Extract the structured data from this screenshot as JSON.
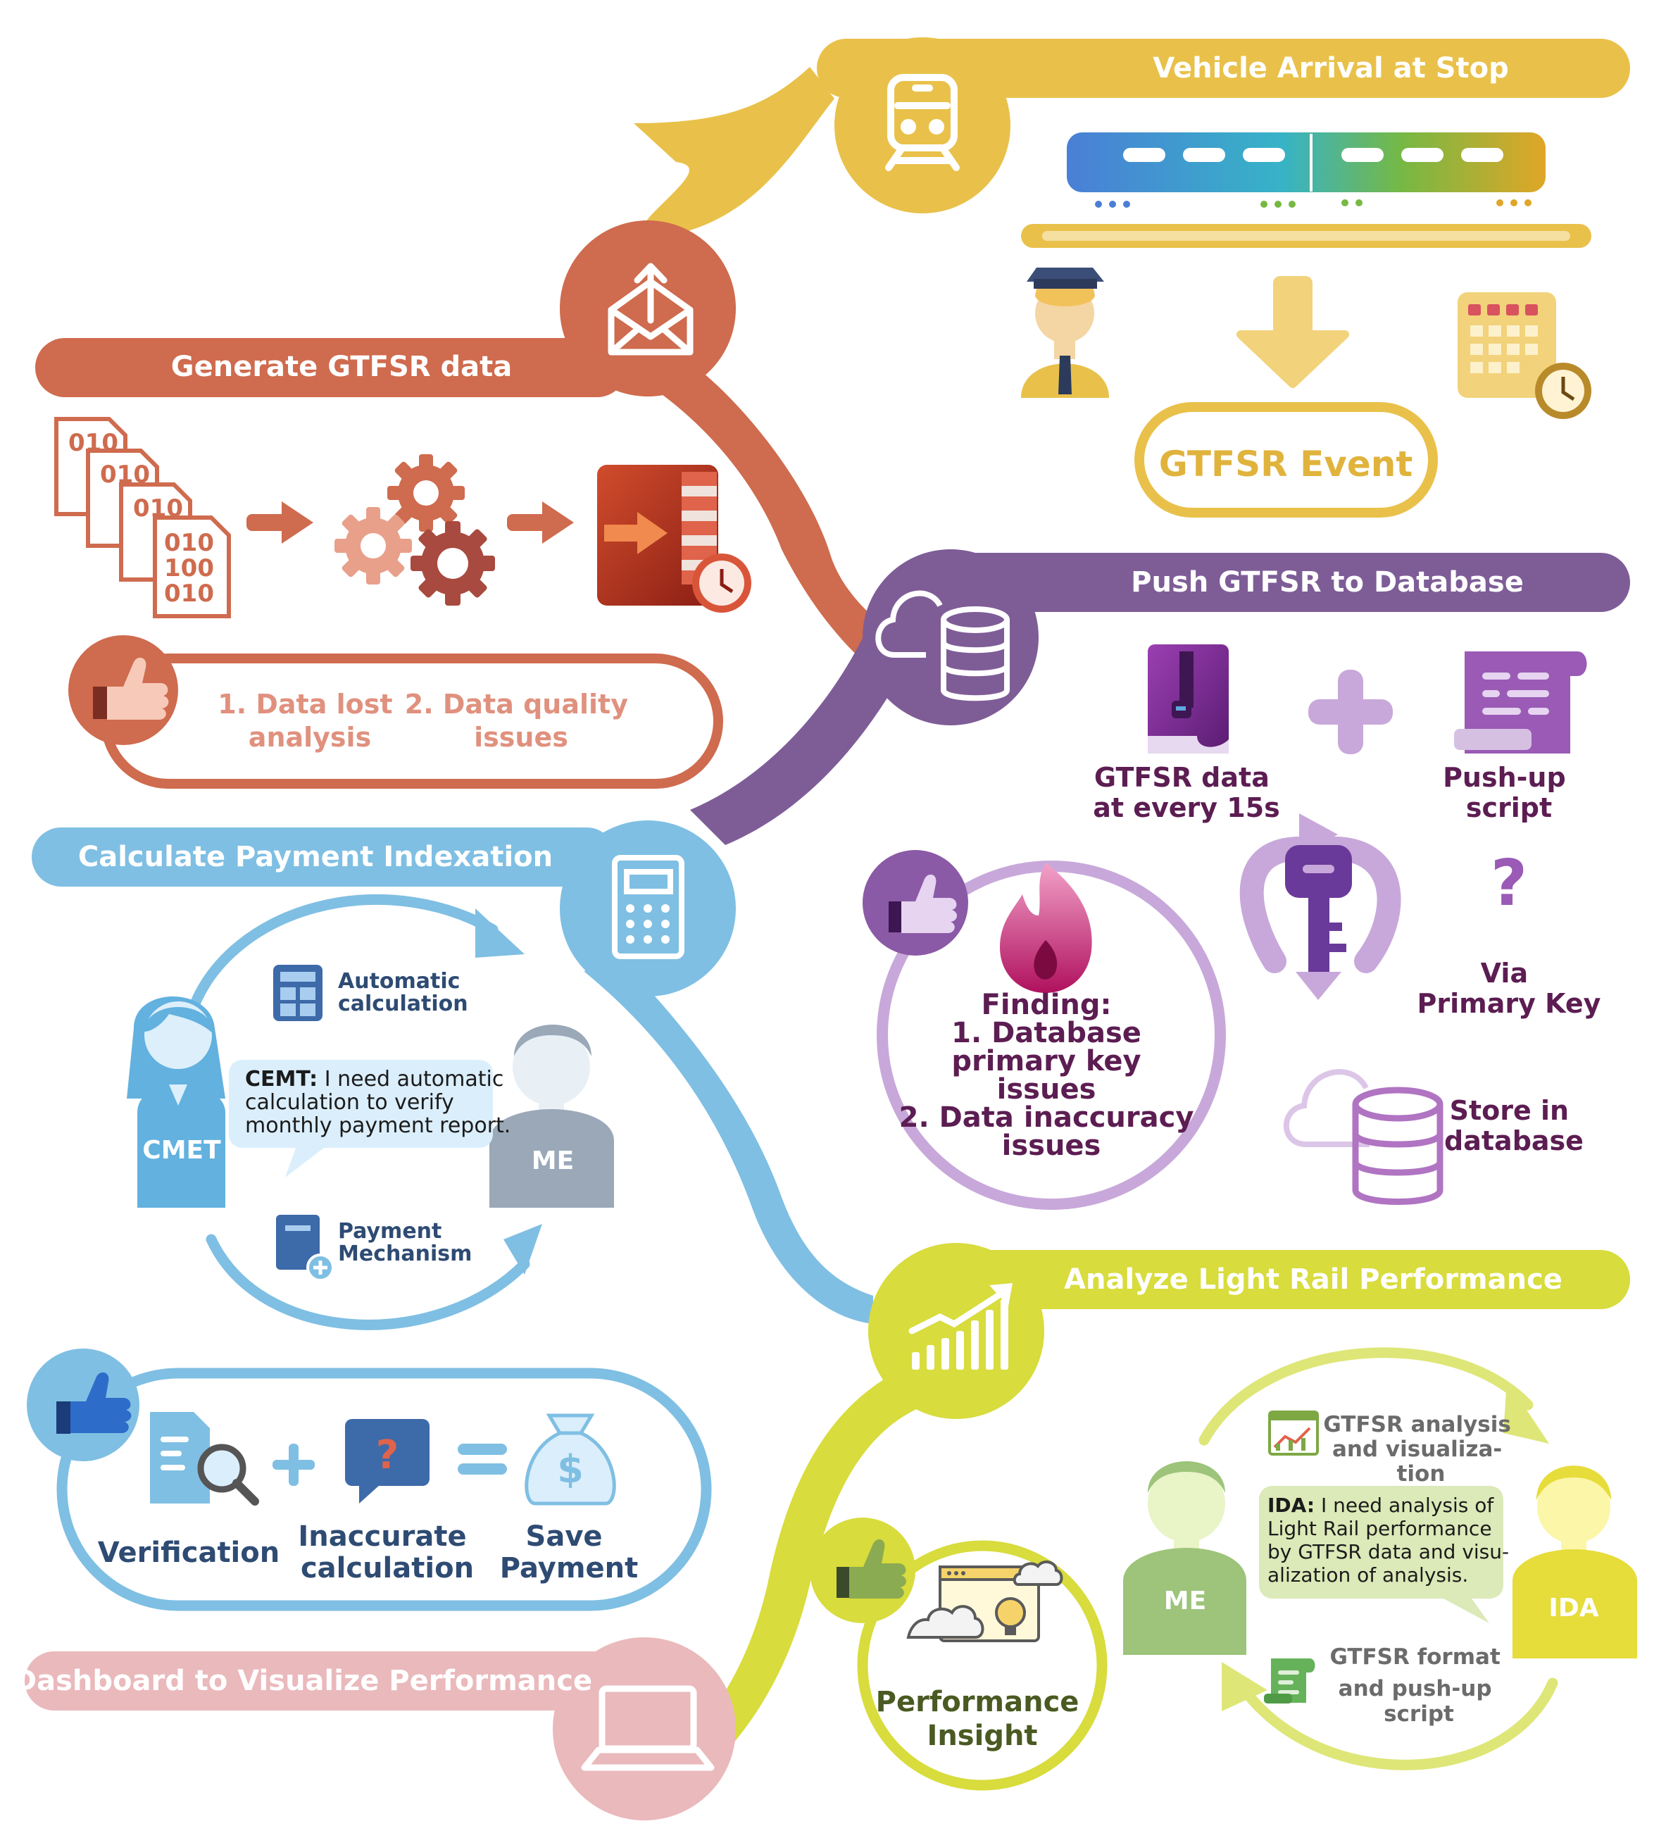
{
  "colors": {
    "yellow": "#e9c14a",
    "orange_red": "#cf6b4e",
    "purple": "#7e5d97",
    "blue": "#7fbfe3",
    "lime": "#d8dc3c",
    "pink": "#eab9bc",
    "dark_purple": "#5c1d52",
    "navy": "#2e4b73"
  },
  "vehicle": {
    "title": "Vehicle Arrival at Stop",
    "event": "GTFSR Event"
  },
  "generate": {
    "title": "Generate GTFSR data",
    "binary_lines": [
      "010",
      "100",
      "010"
    ],
    "finding_1": [
      "1. Data lost",
      "analysis"
    ],
    "finding_2": [
      "2. Data quality",
      "issues"
    ]
  },
  "push": {
    "title": "Push GTFSR to Database",
    "data_label": [
      "GTFSR data",
      "at every 15s"
    ],
    "script_label": [
      "Push-up",
      "script"
    ],
    "question_mark": "?",
    "via": [
      "Via",
      "Primary Key"
    ],
    "store": [
      "Store in",
      "database"
    ],
    "finding": [
      "Finding:",
      "1. Database",
      "primary key",
      "issues",
      "2. Data inaccuracy",
      "issues"
    ]
  },
  "payment": {
    "title": "Calculate Payment Indexation",
    "automatic": [
      "Automatic",
      "calculation"
    ],
    "bubble_name": "CEMT:",
    "bubble_lines": [
      " I need automatic",
      "calculation to verify",
      "monthly payment report."
    ],
    "cmet_label": "CMET",
    "me_label": "ME",
    "mechanism": [
      "Payment",
      "Mechanism"
    ],
    "verification": "Verification",
    "inaccurate": [
      "Inaccurate",
      "calculation"
    ],
    "save": [
      "Save",
      "Payment"
    ]
  },
  "analyze": {
    "title": "Analyze Light Rail Performance",
    "analysis_label": [
      "GTFSR analysis",
      "and visualiza-",
      "tion"
    ],
    "bubble_name": "IDA:",
    "bubble_lines": [
      " I need analysis of",
      "Light Rail performance",
      "by GTFSR data and visu-",
      "alization of analysis."
    ],
    "me_label": "ME",
    "ida_label": "IDA",
    "format_label": [
      "GTFSR format",
      "and push-up",
      "script"
    ],
    "insight": [
      "Performance",
      "Insight"
    ]
  },
  "dashboard": {
    "title": "Dashboard to Visualize Performance"
  }
}
